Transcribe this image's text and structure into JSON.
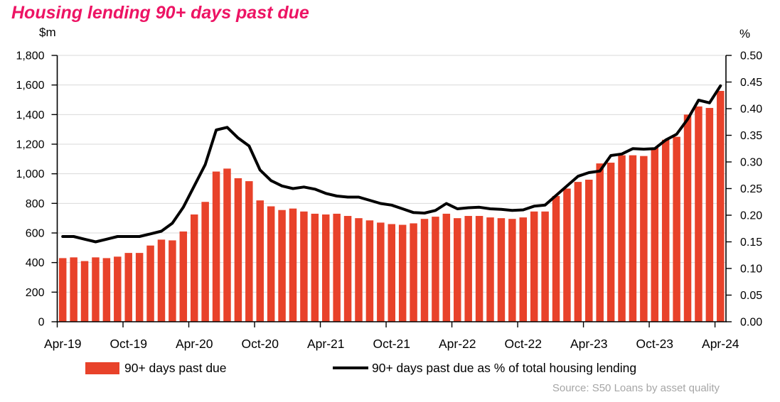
{
  "header": {
    "title": "Housing lending 90+ days past due"
  },
  "chart_data": {
    "type": "combo",
    "title": "Housing lending 90+ days past due",
    "grid": true,
    "legend_position": "bottom",
    "months": [
      "Apr-19",
      "May-19",
      "Jun-19",
      "Jul-19",
      "Aug-19",
      "Sep-19",
      "Oct-19",
      "Nov-19",
      "Dec-19",
      "Jan-20",
      "Feb-20",
      "Mar-20",
      "Apr-20",
      "May-20",
      "Jun-20",
      "Jul-20",
      "Aug-20",
      "Sep-20",
      "Oct-20",
      "Nov-20",
      "Dec-20",
      "Jan-21",
      "Feb-21",
      "Mar-21",
      "Apr-21",
      "May-21",
      "Jun-21",
      "Jul-21",
      "Aug-21",
      "Sep-21",
      "Oct-21",
      "Nov-21",
      "Dec-21",
      "Jan-22",
      "Feb-22",
      "Mar-22",
      "Apr-22",
      "May-22",
      "Jun-22",
      "Jul-22",
      "Aug-22",
      "Sep-22",
      "Oct-22",
      "Nov-22",
      "Dec-22",
      "Jan-23",
      "Feb-23",
      "Mar-23",
      "Apr-23",
      "May-23",
      "Jun-23",
      "Jul-23",
      "Aug-23",
      "Sep-23",
      "Oct-23",
      "Nov-23",
      "Dec-23",
      "Jan-24",
      "Feb-24",
      "Mar-24",
      "Apr-24"
    ],
    "x_tick_labels": [
      "Apr-19",
      "Oct-19",
      "Apr-20",
      "Oct-20",
      "Apr-21",
      "Oct-21",
      "Apr-22",
      "Oct-22",
      "Apr-23",
      "Oct-23",
      "Apr-24"
    ],
    "series": [
      {
        "name": "90+ days past due",
        "type": "bar",
        "axis": "left",
        "color": "#E8422A",
        "values": [
          430,
          435,
          410,
          435,
          430,
          440,
          465,
          465,
          515,
          555,
          550,
          610,
          725,
          810,
          1015,
          1035,
          970,
          950,
          820,
          780,
          755,
          765,
          745,
          730,
          725,
          730,
          715,
          700,
          685,
          670,
          660,
          655,
          665,
          695,
          710,
          730,
          700,
          715,
          715,
          705,
          700,
          695,
          705,
          745,
          745,
          850,
          900,
          945,
          960,
          1070,
          1075,
          1125,
          1125,
          1120,
          1175,
          1230,
          1250,
          1400,
          1455,
          1445,
          1560
        ]
      },
      {
        "name": "90+ days past due as % of total housing lending",
        "type": "line",
        "axis": "right",
        "color": "#000000",
        "values": [
          0.16,
          0.16,
          0.155,
          0.15,
          0.155,
          0.16,
          0.16,
          0.16,
          0.165,
          0.17,
          0.185,
          0.215,
          0.255,
          0.295,
          0.36,
          0.365,
          0.345,
          0.33,
          0.285,
          0.265,
          0.255,
          0.25,
          0.253,
          0.249,
          0.241,
          0.236,
          0.234,
          0.234,
          0.228,
          0.222,
          0.219,
          0.212,
          0.205,
          0.204,
          0.209,
          0.222,
          0.212,
          0.214,
          0.215,
          0.212,
          0.211,
          0.209,
          0.21,
          0.217,
          0.219,
          0.237,
          0.255,
          0.273,
          0.28,
          0.283,
          0.312,
          0.315,
          0.325,
          0.324,
          0.325,
          0.341,
          0.352,
          0.38,
          0.416,
          0.411,
          0.443
        ]
      }
    ],
    "left_axis": {
      "unit": "$m",
      "min": 0,
      "max": 1800,
      "step": 200,
      "tick_labels": [
        "0",
        "200",
        "400",
        "600",
        "800",
        "1,000",
        "1,200",
        "1,400",
        "1,600",
        "1,800"
      ]
    },
    "right_axis": {
      "unit": "%",
      "min": 0,
      "max": 0.5,
      "step": 0.05,
      "tick_labels": [
        "0.00",
        "0.05",
        "0.10",
        "0.15",
        "0.20",
        "0.25",
        "0.30",
        "0.35",
        "0.40",
        "0.45",
        "0.50"
      ]
    }
  },
  "legend": {
    "items": [
      {
        "label": "90+ days past due",
        "swatch": "bar",
        "color": "#E8422A"
      },
      {
        "label": "90+ days past due as % of total housing lending",
        "swatch": "line",
        "color": "#000000"
      }
    ]
  },
  "source": {
    "text": "Source:  S50 Loans by asset quality"
  },
  "colors": {
    "title": "#ED1464",
    "bar": "#E8422A",
    "line": "#000000",
    "grid": "#D9D9D9",
    "axis": "#000000",
    "source_text": "#A6A6A6"
  }
}
